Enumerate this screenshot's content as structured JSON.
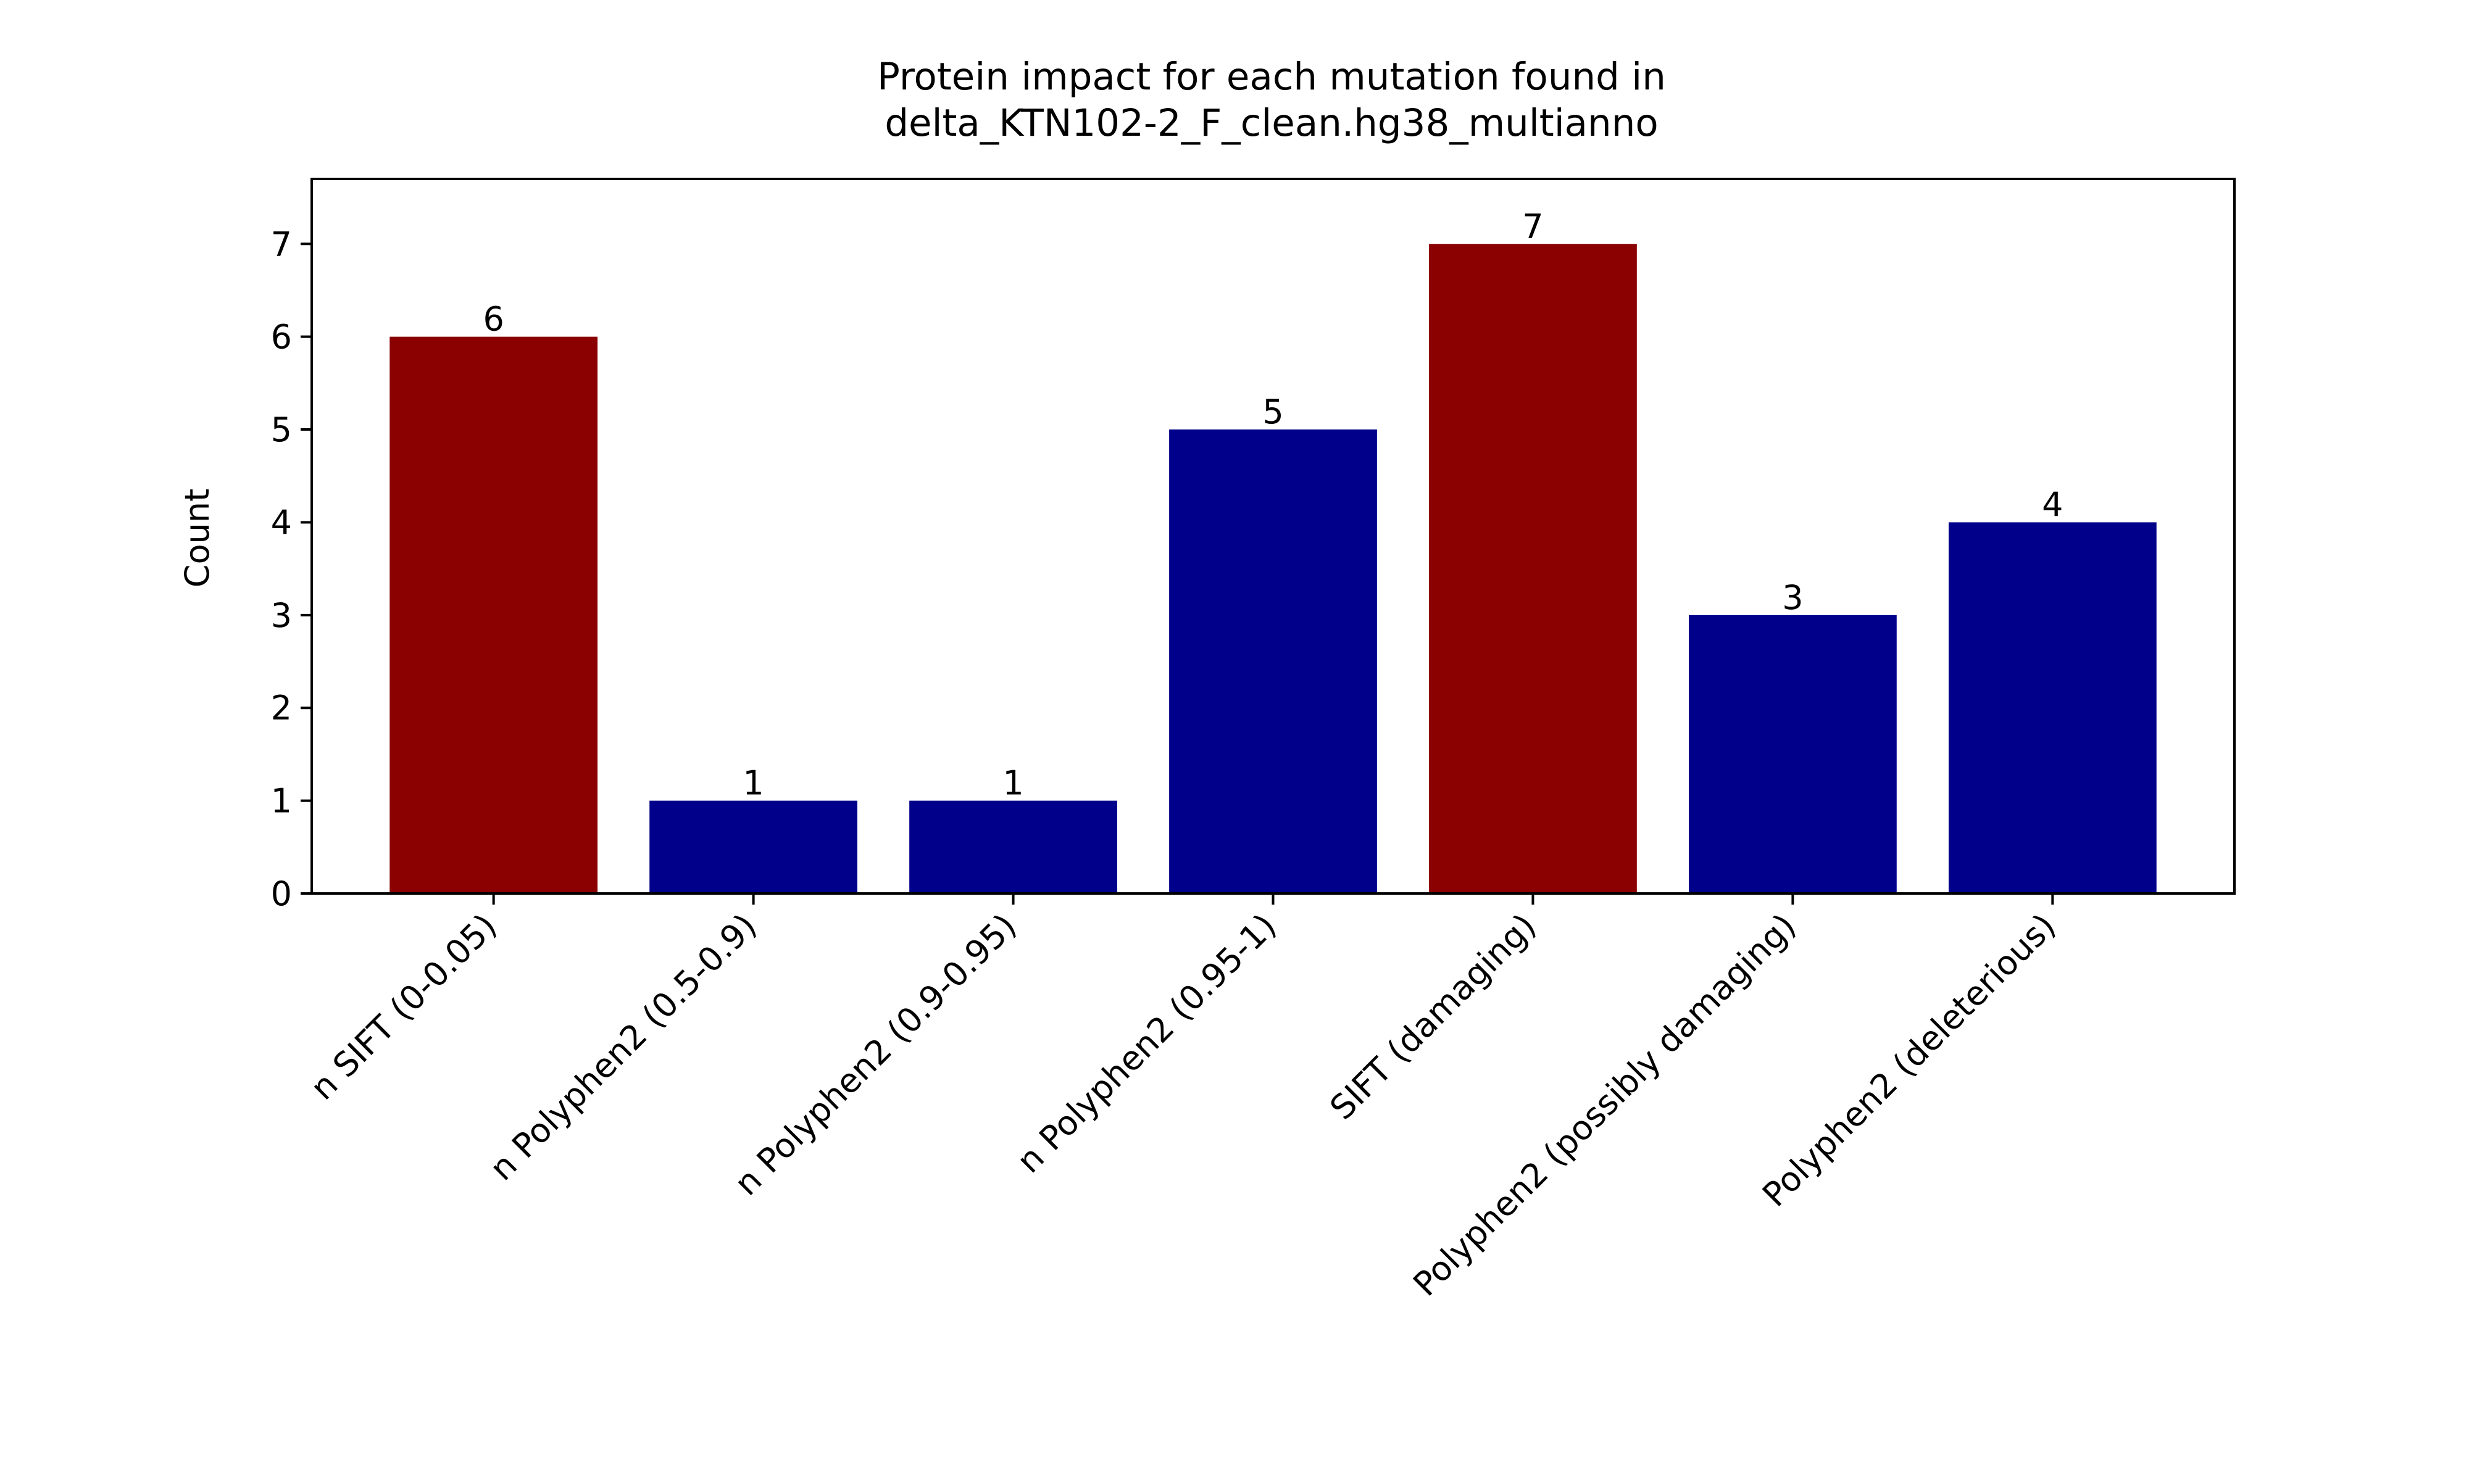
{
  "chart_data": {
    "type": "bar",
    "title_lines": [
      "Protein impact for each mutation found in",
      "delta_KTN102-2_F_clean.hg38_multianno"
    ],
    "xlabel": "",
    "ylabel": "Count",
    "categories": [
      "n SIFT (0-0.05)",
      "n Polyphen2 (0.5-0.9)",
      "n Polyphen2 (0.9-0.95)",
      "n Polyphen2 (0.95-1)",
      "SIFT (damaging)",
      "Polyphen2 (possibly damaging)",
      "Polyphen2 (deleterious)"
    ],
    "values": [
      6,
      1,
      1,
      5,
      7,
      3,
      4
    ],
    "bar_colors": [
      "#8b0000",
      "#00008b",
      "#00008b",
      "#00008b",
      "#8b0000",
      "#00008b",
      "#00008b"
    ],
    "ylim": [
      0,
      7.7
    ],
    "yticks": [
      0,
      1,
      2,
      3,
      4,
      5,
      6,
      7
    ],
    "grid": false,
    "legend": "none"
  }
}
